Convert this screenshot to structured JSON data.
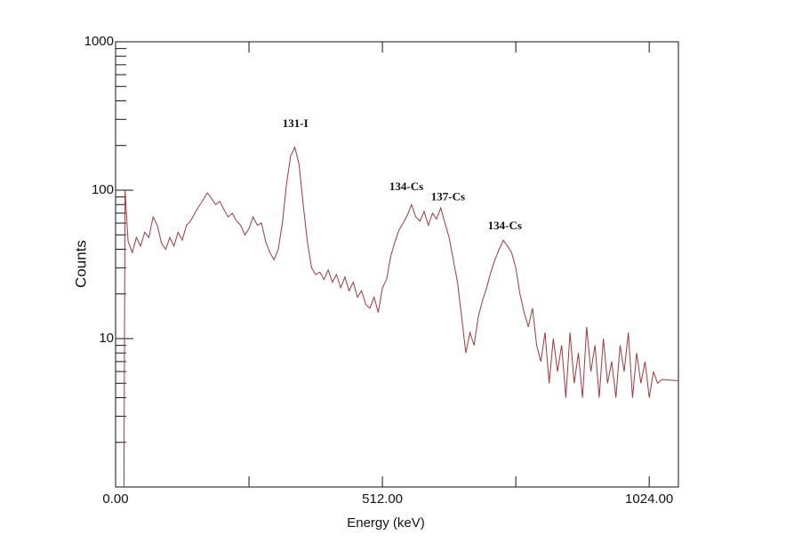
{
  "chart_data": {
    "type": "line",
    "x_label": "Energy (keV)",
    "y_label": "Counts",
    "log_y": true,
    "color": "#a3363a",
    "xlim": [
      0,
      1080
    ],
    "xticks": [
      {
        "value": 0,
        "label": "0.00"
      },
      {
        "value": 512,
        "label": "512.00"
      },
      {
        "value": 1024,
        "label": "1024.00"
      }
    ],
    "xminorticks": [
      256,
      768
    ],
    "ylim": [
      1,
      1000
    ],
    "yticks": [
      10,
      100,
      1000
    ],
    "yminorticks": [
      2,
      3,
      4,
      5,
      6,
      7,
      8,
      9,
      20,
      30,
      40,
      50,
      60,
      70,
      80,
      90,
      200,
      300,
      400,
      500,
      600,
      700,
      800,
      900
    ],
    "x": [
      16,
      18,
      24,
      32,
      40,
      48,
      56,
      64,
      72,
      80,
      88,
      96,
      104,
      112,
      120,
      128,
      136,
      144,
      152,
      160,
      168,
      176,
      184,
      192,
      200,
      208,
      216,
      224,
      232,
      240,
      248,
      256,
      264,
      272,
      280,
      288,
      296,
      304,
      312,
      320,
      328,
      336,
      344,
      352,
      360,
      368,
      376,
      384,
      392,
      400,
      408,
      416,
      424,
      432,
      440,
      448,
      456,
      464,
      472,
      480,
      488,
      496,
      504,
      512,
      520,
      528,
      536,
      544,
      552,
      560,
      568,
      576,
      584,
      592,
      600,
      608,
      616,
      624,
      632,
      640,
      648,
      656,
      664,
      672,
      680,
      688,
      696,
      704,
      712,
      720,
      728,
      736,
      744,
      752,
      760,
      768,
      776,
      784,
      792,
      800,
      808,
      816,
      824,
      832,
      840,
      848,
      856,
      864,
      872,
      880,
      888,
      896,
      904,
      912,
      920,
      928,
      936,
      944,
      952,
      960,
      968,
      976,
      984,
      992,
      1000,
      1008,
      1016,
      1024,
      1032,
      1040,
      1048,
      1080
    ],
    "values": [
      1,
      100,
      45,
      38,
      48,
      42,
      52,
      48,
      66,
      58,
      44,
      40,
      48,
      42,
      52,
      46,
      58,
      62,
      70,
      78,
      86,
      96,
      88,
      80,
      84,
      74,
      66,
      70,
      62,
      58,
      50,
      55,
      66,
      58,
      60,
      45,
      38,
      34,
      40,
      60,
      110,
      170,
      195,
      150,
      80,
      45,
      30,
      27,
      28,
      25,
      29,
      24,
      27,
      22,
      26,
      21,
      24,
      19,
      21,
      17,
      16,
      19,
      15,
      22,
      25,
      36,
      45,
      54,
      60,
      68,
      80,
      66,
      62,
      72,
      58,
      70,
      64,
      76,
      60,
      48,
      34,
      24,
      14,
      8,
      11,
      9,
      14,
      18,
      22,
      28,
      34,
      40,
      46,
      42,
      38,
      30,
      20,
      15,
      12,
      16,
      9,
      7,
      11,
      5,
      10,
      6,
      9,
      4,
      11,
      5,
      8,
      4,
      12,
      6,
      9,
      4,
      10,
      5,
      7,
      4,
      9,
      6,
      11,
      4,
      8,
      5,
      7,
      4,
      6,
      5,
      5.3,
      5.2
    ],
    "annotations": [
      {
        "text": "131-I",
        "x": 345,
        "y": 277
      },
      {
        "text": "134-Cs",
        "x": 558,
        "y": 104
      },
      {
        "text": "137-Cs",
        "x": 638,
        "y": 89
      },
      {
        "text": "134-Cs",
        "x": 747,
        "y": 57
      }
    ]
  }
}
